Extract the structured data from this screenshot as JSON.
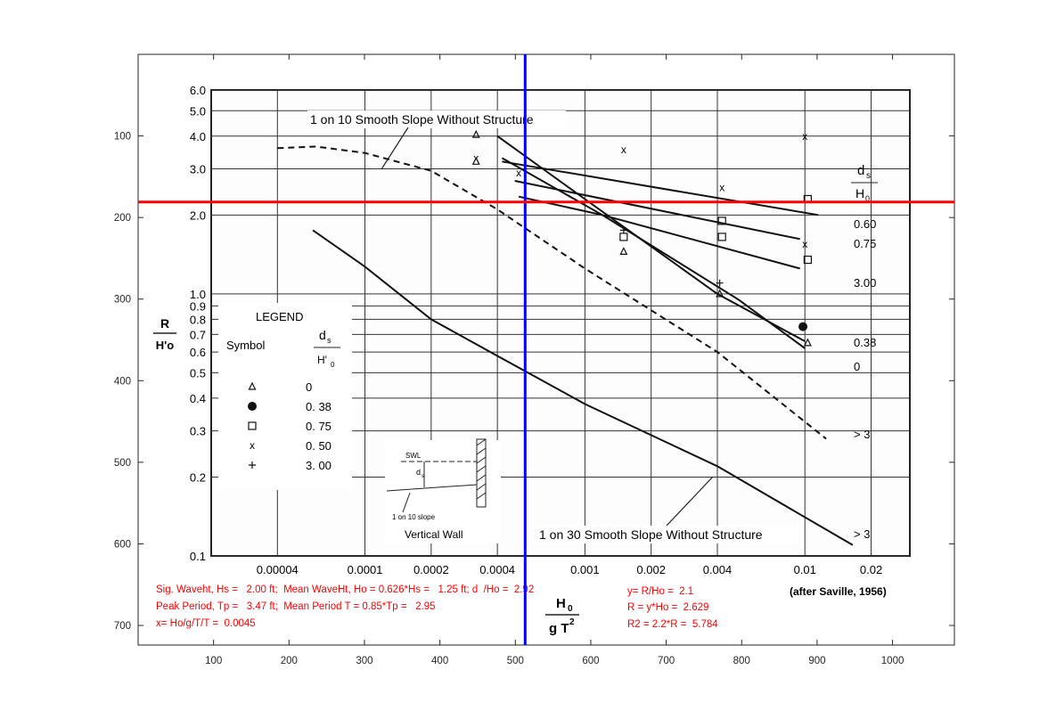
{
  "window": {
    "background": "#ffffff"
  },
  "chart_data": {
    "type": "line",
    "title": "",
    "axes": {
      "x": {
        "ticks": [
          100,
          200,
          300,
          400,
          500,
          600,
          700,
          800,
          900,
          1000
        ],
        "range": [
          0,
          1082
        ]
      },
      "y": {
        "ticks": [
          100,
          200,
          300,
          400,
          500,
          600,
          700
        ],
        "range": [
          0,
          724
        ],
        "direction": "top-down"
      },
      "grid": false
    },
    "image": {
      "left_label": {
        "num": "R",
        "den": "H'o"
      },
      "bottom_label": {
        "num": "H",
        "num_sub": "0",
        "den": "g T",
        "den_sup": "2"
      },
      "credit": "(after Saville, 1956)",
      "y_ticks": [
        {
          "label": "6.0",
          "value": 6.0
        },
        {
          "label": "5.0",
          "value": 5.0
        },
        {
          "label": "4.0",
          "value": 4.0
        },
        {
          "label": "3.0",
          "value": 3.0
        },
        {
          "label": "2.0",
          "value": 2.0
        },
        {
          "label": "1.0",
          "value": 1.0
        },
        {
          "label": "0.9",
          "value": 0.9
        },
        {
          "label": "0.8",
          "value": 0.8
        },
        {
          "label": "0.7",
          "value": 0.7
        },
        {
          "label": "0.6",
          "value": 0.6
        },
        {
          "label": "0.5",
          "value": 0.5
        },
        {
          "label": "0.4",
          "value": 0.4
        },
        {
          "label": "0.3",
          "value": 0.3
        },
        {
          "label": "0.2",
          "value": 0.2
        },
        {
          "label": "0.1",
          "value": 0.1
        }
      ],
      "x_ticks": [
        {
          "label": "0.00004",
          "value": 4e-05
        },
        {
          "label": "0.0001",
          "value": 0.0001
        },
        {
          "label": "0.0002",
          "value": 0.0002
        },
        {
          "label": "0.0004",
          "value": 0.0004
        },
        {
          "label": "0.001",
          "value": 0.001
        },
        {
          "label": "0.002",
          "value": 0.002
        },
        {
          "label": "0.004",
          "value": 0.004
        },
        {
          "label": "0.01",
          "value": 0.01
        },
        {
          "label": "0.02",
          "value": 0.02
        }
      ],
      "series": [
        {
          "name": "0.60",
          "x": [
            0.00042,
            0.0115
          ],
          "y": [
            3.2,
            2.0
          ]
        },
        {
          "name": "0.75",
          "x": [
            0.00048,
            0.0095
          ],
          "y": [
            2.7,
            1.62
          ]
        },
        {
          "name": "3.00",
          "x": [
            0.0005,
            0.0012,
            0.0095
          ],
          "y": [
            2.35,
            2.0,
            1.25
          ]
        },
        {
          "name": "0.38",
          "x": [
            0.0004,
            0.001,
            0.004,
            0.01
          ],
          "y": [
            4.0,
            2.3,
            1.0,
            0.66
          ]
        },
        {
          "name": "0",
          "x": [
            0.00042,
            0.0012,
            0.005,
            0.01
          ],
          "y": [
            3.3,
            2.0,
            0.95,
            0.62
          ]
        },
        {
          "name": "1 on 10 Smooth Slope Without Structure",
          "dashed": true,
          "x": [
            4e-05,
            6e-05,
            0.0001,
            0.0002,
            0.0004,
            0.001,
            0.004,
            0.0125
          ],
          "y": [
            3.6,
            3.65,
            3.45,
            2.95,
            2.1,
            1.25,
            0.6,
            0.28
          ]
        },
        {
          "name": "1 on 30 Smooth Slope Without Structure",
          "x": [
            5.8e-05,
            0.0001,
            0.0002,
            0.0004,
            0.001,
            0.004,
            0.0165
          ],
          "y": [
            1.75,
            1.27,
            0.8,
            0.58,
            0.38,
            0.22,
            0.11
          ]
        }
      ],
      "points": [
        {
          "sym": "x",
          "x": 0.0015,
          "y": 3.55
        },
        {
          "sym": "x",
          "x": 0.0042,
          "y": 2.55
        },
        {
          "sym": "x",
          "x": 0.01,
          "y": 4.0
        },
        {
          "sym": "x",
          "x": 0.0005,
          "y": 2.9
        },
        {
          "sym": "x",
          "x": 0.00032,
          "y": 3.3
        },
        {
          "sym": "x",
          "x": 0.01,
          "y": 1.55
        },
        {
          "sym": "tri",
          "x": 0.00032,
          "y": 4.05
        },
        {
          "sym": "tri",
          "x": 0.00032,
          "y": 3.2
        },
        {
          "sym": "tri",
          "x": 0.0015,
          "y": 1.45
        },
        {
          "sym": "tri",
          "x": 0.0041,
          "y": 1.0
        },
        {
          "sym": "tri",
          "x": 0.0103,
          "y": 0.65
        },
        {
          "sym": "sq",
          "x": 0.0015,
          "y": 1.65
        },
        {
          "sym": "sq",
          "x": 0.0042,
          "y": 1.9
        },
        {
          "sym": "sq",
          "x": 0.0042,
          "y": 1.65
        },
        {
          "sym": "sq",
          "x": 0.0103,
          "y": 2.3
        },
        {
          "sym": "sq",
          "x": 0.0103,
          "y": 1.35
        },
        {
          "sym": "plus",
          "x": 0.0015,
          "y": 1.75
        },
        {
          "sym": "plus",
          "x": 0.0041,
          "y": 1.1
        },
        {
          "sym": "dot",
          "x": 0.0098,
          "y": 0.75
        }
      ],
      "right_labels": [
        "0.60",
        "0.75",
        "3.00",
        "0.38",
        "0",
        "> 3",
        "> 3"
      ],
      "right_header": {
        "num": "d",
        "num_sub": "s",
        "den": "H",
        "den_sub": "0"
      },
      "legend": {
        "title": "LEGEND",
        "symbol_header": "Symbol",
        "ratio_header": {
          "num": "d",
          "num_sub": "s",
          "den": "H'",
          "den_sub": "0"
        },
        "rows": [
          {
            "sym": "tri",
            "value": "0"
          },
          {
            "sym": "dot",
            "value": "0. 38"
          },
          {
            "sym": "sq",
            "value": "0. 75"
          },
          {
            "sym": "x",
            "value": "0. 50"
          },
          {
            "sym": "plus",
            "value": "3. 00"
          }
        ]
      },
      "annotations": {
        "top": "1 on 10 Smooth Slope Without Structure",
        "bottom": "1 on 30 Smooth Slope Without Structure",
        "inset_swl": "SWL",
        "inset_ds": "d",
        "inset_ds_sub": "s",
        "inset_slope": "1 on 10 slope",
        "inset_caption": "Vertical Wall"
      }
    },
    "overlays": {
      "vertical_line": {
        "x": 513,
        "color": "#0000ff"
      },
      "horizontal_line": {
        "y": 181,
        "color": "#ff0000"
      }
    },
    "red_text": {
      "color": "#ff0000",
      "line1": "Sig. Waveht, Hs =   2.00 ft;  Mean WaveHt, Ho = 0.626*Hs =   1.25 ft; d  /Ho =  2.92",
      "line2": "Peak Period, Tp =   3.47 ft;  Mean Period T = 0.85*Tp =   2.95",
      "line3": "x= Ho/g/T/T =  0.0045",
      "r1": "y= R/Ho =  2.1",
      "r2": "R = y*Ho =  2.629",
      "r3": "R2 = 2.2*R =  5.784"
    }
  }
}
